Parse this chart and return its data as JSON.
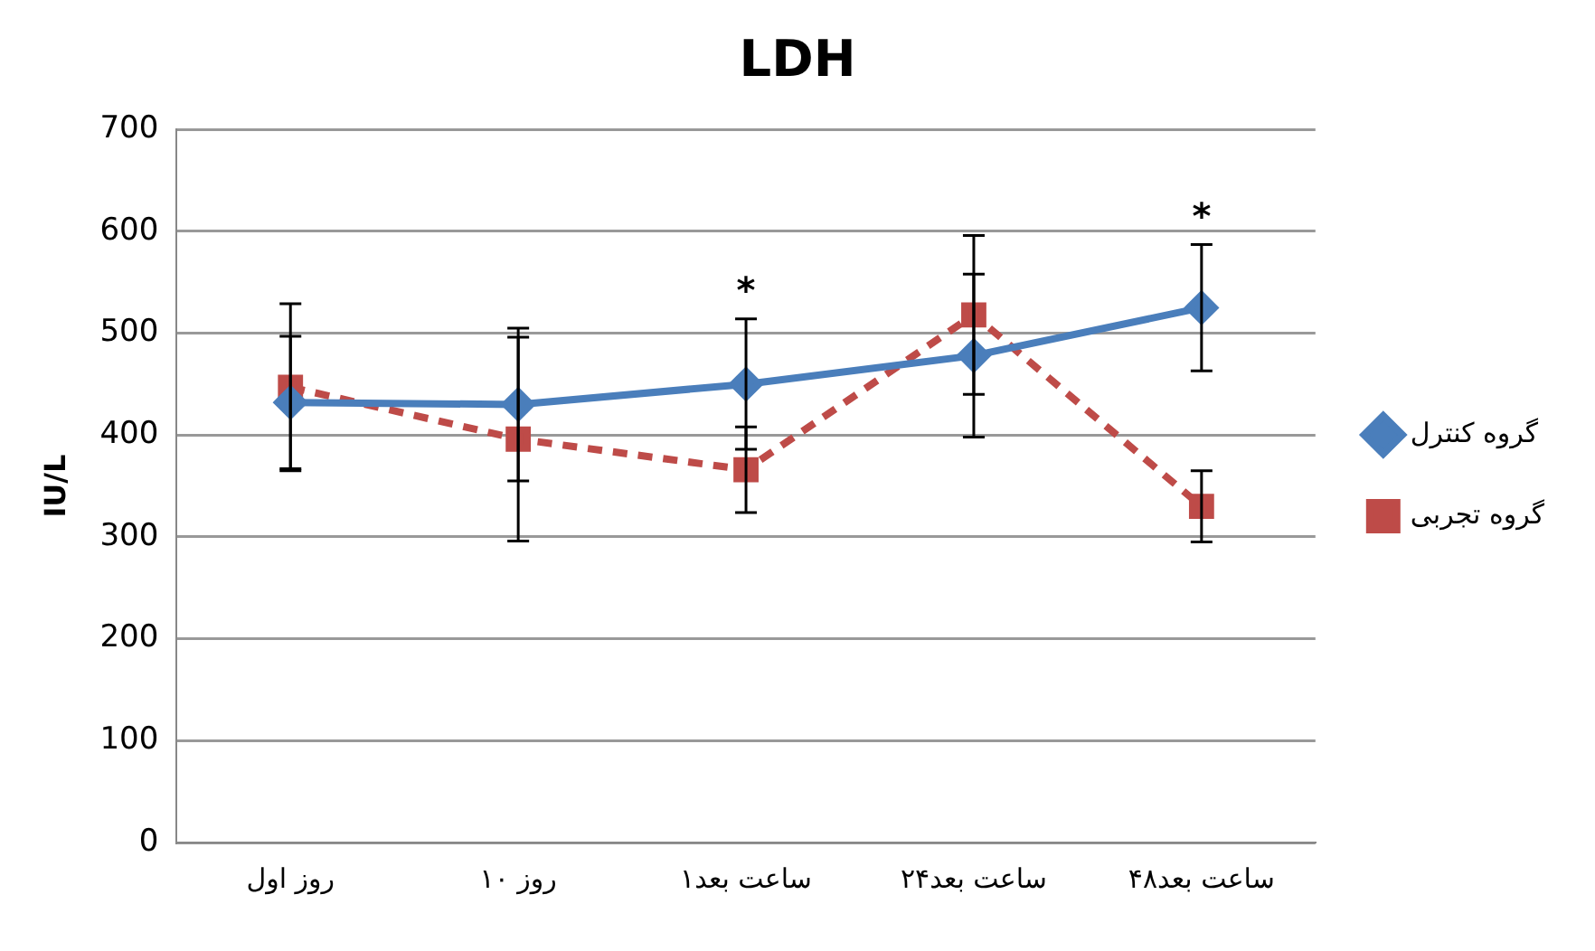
{
  "chart_data": {
    "type": "line",
    "title": "LDH",
    "ylabel": "IU/L",
    "categories": [
      "روز اول",
      "روز ۱۰",
      "۱ساعت بعد",
      "۲۴ساعت بعد",
      "۴۸ساعت بعد"
    ],
    "series": [
      {
        "name": "گروه کنترل",
        "color": "#4a7ebb",
        "values": [
          432,
          430,
          450,
          478,
          525
        ],
        "errors": [
          65,
          75,
          64,
          80,
          62
        ],
        "value_labels": [
          null,
          null,
          "*",
          null,
          "*"
        ],
        "marker": "diamond",
        "line_style": "solid"
      },
      {
        "name": "گروه تجربی",
        "color": "#be4b48",
        "values": [
          447,
          396,
          366,
          518,
          330
        ],
        "errors": [
          82,
          100,
          42,
          78,
          35
        ],
        "marker": "square",
        "line_style": "dashed"
      }
    ],
    "ylim": [
      0,
      700
    ],
    "yticks": [
      0,
      100,
      200,
      300,
      400,
      500,
      600,
      700
    ],
    "grid": "y",
    "legend": "right"
  }
}
